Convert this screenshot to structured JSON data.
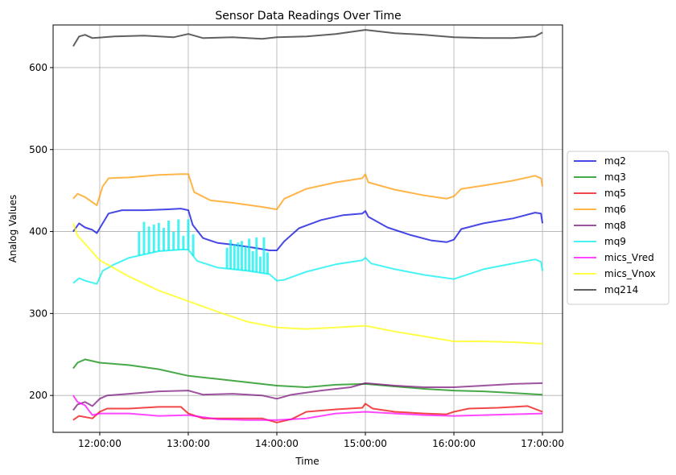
{
  "chart_data": {
    "type": "line",
    "title": "Sensor Data Readings Over Time",
    "xlabel": "Time",
    "ylabel": "Analog Values",
    "x_range": [
      "11:42:00",
      "17:00:00"
    ],
    "ylim": [
      155,
      652
    ],
    "grid": true,
    "legend_position": "right",
    "x_ticks": [
      "12:00:00",
      "13:00:00",
      "14:00:00",
      "15:00:00",
      "16:00:00",
      "17:00:00"
    ],
    "y_ticks": [
      200,
      300,
      400,
      500,
      600
    ],
    "series": [
      {
        "name": "mq2",
        "color": "#0000dd",
        "points": [
          [
            "11:42:00",
            400
          ],
          [
            "11:46:00",
            410
          ],
          [
            "11:50:00",
            405
          ],
          [
            "11:55:00",
            402
          ],
          [
            "11:58:00",
            398
          ],
          [
            "12:02:00",
            410
          ],
          [
            "12:06:00",
            422
          ],
          [
            "12:15:00",
            426
          ],
          [
            "12:30:00",
            426
          ],
          [
            "12:45:00",
            427
          ],
          [
            "12:55:00",
            428
          ],
          [
            "13:00:00",
            426
          ],
          [
            "13:03:00",
            408
          ],
          [
            "13:10:00",
            392
          ],
          [
            "13:20:00",
            386
          ],
          [
            "13:30:00",
            384
          ],
          [
            "13:45:00",
            380
          ],
          [
            "13:55:00",
            377
          ],
          [
            "14:00:00",
            377
          ],
          [
            "14:05:00",
            388
          ],
          [
            "14:15:00",
            404
          ],
          [
            "14:30:00",
            414
          ],
          [
            "14:45:00",
            420
          ],
          [
            "14:58:00",
            422
          ],
          [
            "15:00:00",
            425
          ],
          [
            "15:02:00",
            418
          ],
          [
            "15:15:00",
            405
          ],
          [
            "15:30:00",
            396
          ],
          [
            "15:45:00",
            389
          ],
          [
            "15:55:00",
            387
          ],
          [
            "16:00:00",
            390
          ],
          [
            "16:05:00",
            403
          ],
          [
            "16:20:00",
            410
          ],
          [
            "16:40:00",
            416
          ],
          [
            "16:55:00",
            423
          ],
          [
            "16:59:00",
            422
          ],
          [
            "17:00:00",
            410
          ]
        ]
      },
      {
        "name": "mq3",
        "color": "#008800",
        "points": [
          [
            "11:42:00",
            233
          ],
          [
            "11:45:00",
            240
          ],
          [
            "11:50:00",
            244
          ],
          [
            "12:00:00",
            240
          ],
          [
            "12:20:00",
            237
          ],
          [
            "12:40:00",
            232
          ],
          [
            "13:00:00",
            224
          ],
          [
            "13:20:00",
            220
          ],
          [
            "13:40:00",
            216
          ],
          [
            "14:00:00",
            212
          ],
          [
            "14:20:00",
            210
          ],
          [
            "14:40:00",
            213
          ],
          [
            "15:00:00",
            214
          ],
          [
            "15:20:00",
            211
          ],
          [
            "15:40:00",
            208
          ],
          [
            "16:00:00",
            206
          ],
          [
            "16:20:00",
            205
          ],
          [
            "16:40:00",
            203
          ],
          [
            "17:00:00",
            201
          ]
        ]
      },
      {
        "name": "mq5",
        "color": "#ee0000",
        "points": [
          [
            "11:42:00",
            170
          ],
          [
            "11:46:00",
            175
          ],
          [
            "11:55:00",
            172
          ],
          [
            "12:00:00",
            180
          ],
          [
            "12:05:00",
            184
          ],
          [
            "12:20:00",
            184
          ],
          [
            "12:40:00",
            186
          ],
          [
            "12:55:00",
            186
          ],
          [
            "13:00:00",
            178
          ],
          [
            "13:10:00",
            172
          ],
          [
            "13:30:00",
            172
          ],
          [
            "13:50:00",
            172
          ],
          [
            "14:00:00",
            167
          ],
          [
            "14:10:00",
            171
          ],
          [
            "14:20:00",
            180
          ],
          [
            "14:40:00",
            183
          ],
          [
            "14:58:00",
            185
          ],
          [
            "15:00:00",
            190
          ],
          [
            "15:05:00",
            184
          ],
          [
            "15:20:00",
            180
          ],
          [
            "15:40:00",
            178
          ],
          [
            "15:55:00",
            177
          ],
          [
            "16:00:00",
            180
          ],
          [
            "16:10:00",
            184
          ],
          [
            "16:30:00",
            185
          ],
          [
            "16:50:00",
            187
          ],
          [
            "17:00:00",
            180
          ]
        ]
      },
      {
        "name": "mq6",
        "color": "#ff9900",
        "points": [
          [
            "11:42:00",
            440
          ],
          [
            "11:45:00",
            446
          ],
          [
            "11:50:00",
            442
          ],
          [
            "11:58:00",
            432
          ],
          [
            "12:02:00",
            455
          ],
          [
            "12:06:00",
            465
          ],
          [
            "12:20:00",
            466
          ],
          [
            "12:40:00",
            469
          ],
          [
            "12:55:00",
            470
          ],
          [
            "13:00:00",
            470
          ],
          [
            "13:04:00",
            448
          ],
          [
            "13:15:00",
            438
          ],
          [
            "13:30:00",
            435
          ],
          [
            "13:50:00",
            430
          ],
          [
            "14:00:00",
            427
          ],
          [
            "14:05:00",
            440
          ],
          [
            "14:20:00",
            452
          ],
          [
            "14:40:00",
            460
          ],
          [
            "14:58:00",
            465
          ],
          [
            "15:00:00",
            470
          ],
          [
            "15:02:00",
            460
          ],
          [
            "15:20:00",
            451
          ],
          [
            "15:40:00",
            444
          ],
          [
            "15:55:00",
            440
          ],
          [
            "16:00:00",
            443
          ],
          [
            "16:05:00",
            452
          ],
          [
            "16:20:00",
            456
          ],
          [
            "16:40:00",
            462
          ],
          [
            "16:55:00",
            468
          ],
          [
            "16:59:00",
            465
          ],
          [
            "17:00:00",
            455
          ]
        ]
      },
      {
        "name": "mq8",
        "color": "#771177",
        "points": [
          [
            "11:42:00",
            182
          ],
          [
            "11:45:00",
            189
          ],
          [
            "11:50:00",
            192
          ],
          [
            "11:55:00",
            187
          ],
          [
            "12:00:00",
            196
          ],
          [
            "12:05:00",
            200
          ],
          [
            "12:20:00",
            202
          ],
          [
            "12:40:00",
            205
          ],
          [
            "13:00:00",
            206
          ],
          [
            "13:10:00",
            201
          ],
          [
            "13:30:00",
            202
          ],
          [
            "13:50:00",
            200
          ],
          [
            "14:00:00",
            196
          ],
          [
            "14:10:00",
            201
          ],
          [
            "14:30:00",
            206
          ],
          [
            "14:50:00",
            210
          ],
          [
            "15:00:00",
            215
          ],
          [
            "15:20:00",
            212
          ],
          [
            "15:40:00",
            210
          ],
          [
            "16:00:00",
            210
          ],
          [
            "16:20:00",
            212
          ],
          [
            "16:40:00",
            214
          ],
          [
            "17:00:00",
            215
          ]
        ]
      },
      {
        "name": "mq9",
        "color": "#00eeee",
        "points": [
          [
            "11:42:00",
            337
          ],
          [
            "11:46:00",
            343
          ],
          [
            "11:50:00",
            340
          ],
          [
            "11:58:00",
            336
          ],
          [
            "12:02:00",
            352
          ],
          [
            "12:10:00",
            360
          ],
          [
            "12:20:00",
            368
          ],
          [
            "12:40:00",
            376
          ],
          [
            "12:55:00",
            378
          ],
          [
            "13:00:00",
            378
          ],
          [
            "13:06:00",
            364
          ],
          [
            "13:20:00",
            356
          ],
          [
            "13:40:00",
            352
          ],
          [
            "13:55:00",
            348
          ],
          [
            "14:00:00",
            340
          ],
          [
            "14:05:00",
            341
          ],
          [
            "14:20:00",
            351
          ],
          [
            "14:40:00",
            360
          ],
          [
            "14:58:00",
            365
          ],
          [
            "15:00:00",
            368
          ],
          [
            "15:04:00",
            361
          ],
          [
            "15:20:00",
            354
          ],
          [
            "15:40:00",
            347
          ],
          [
            "16:00:00",
            342
          ],
          [
            "16:05:00",
            345
          ],
          [
            "16:20:00",
            354
          ],
          [
            "16:40:00",
            361
          ],
          [
            "16:55:00",
            366
          ],
          [
            "16:59:00",
            363
          ],
          [
            "17:00:00",
            352
          ]
        ]
      },
      {
        "name": "mics_Vred",
        "color": "#ff00ff",
        "points": [
          [
            "11:42:00",
            200
          ],
          [
            "11:45:00",
            192
          ],
          [
            "11:50:00",
            188
          ],
          [
            "11:55:00",
            176
          ],
          [
            "12:00:00",
            178
          ],
          [
            "12:20:00",
            178
          ],
          [
            "12:40:00",
            175
          ],
          [
            "13:00:00",
            176
          ],
          [
            "13:20:00",
            171
          ],
          [
            "13:40:00",
            170
          ],
          [
            "14:00:00",
            170
          ],
          [
            "14:20:00",
            172
          ],
          [
            "14:40:00",
            178
          ],
          [
            "15:00:00",
            180
          ],
          [
            "15:20:00",
            178
          ],
          [
            "15:40:00",
            176
          ],
          [
            "16:00:00",
            175
          ],
          [
            "16:20:00",
            176
          ],
          [
            "16:40:00",
            177
          ],
          [
            "17:00:00",
            178
          ]
        ]
      },
      {
        "name": "mics_Vnox",
        "color": "#ffff00",
        "points": [
          [
            "11:42:00",
            410
          ],
          [
            "11:45:00",
            395
          ],
          [
            "11:50:00",
            385
          ],
          [
            "12:00:00",
            365
          ],
          [
            "12:20:00",
            345
          ],
          [
            "12:40:00",
            328
          ],
          [
            "13:00:00",
            315
          ],
          [
            "13:20:00",
            302
          ],
          [
            "13:40:00",
            290
          ],
          [
            "14:00:00",
            283
          ],
          [
            "14:20:00",
            281
          ],
          [
            "14:40:00",
            283
          ],
          [
            "15:00:00",
            285
          ],
          [
            "15:20:00",
            278
          ],
          [
            "15:40:00",
            272
          ],
          [
            "16:00:00",
            266
          ],
          [
            "16:20:00",
            266
          ],
          [
            "16:40:00",
            265
          ],
          [
            "17:00:00",
            263
          ]
        ]
      },
      {
        "name": "mq214",
        "color": "#222222",
        "points": [
          [
            "11:42:00",
            626
          ],
          [
            "11:46:00",
            638
          ],
          [
            "11:50:00",
            640
          ],
          [
            "11:55:00",
            636
          ],
          [
            "12:10:00",
            638
          ],
          [
            "12:30:00",
            639
          ],
          [
            "12:50:00",
            637
          ],
          [
            "13:00:00",
            641
          ],
          [
            "13:10:00",
            636
          ],
          [
            "13:30:00",
            637
          ],
          [
            "13:50:00",
            635
          ],
          [
            "14:00:00",
            637
          ],
          [
            "14:20:00",
            638
          ],
          [
            "14:40:00",
            641
          ],
          [
            "15:00:00",
            646
          ],
          [
            "15:20:00",
            642
          ],
          [
            "15:40:00",
            640
          ],
          [
            "16:00:00",
            637
          ],
          [
            "16:20:00",
            636
          ],
          [
            "16:40:00",
            636
          ],
          [
            "16:55:00",
            638
          ],
          [
            "17:00:00",
            643
          ]
        ]
      }
    ],
    "annotations": [
      {
        "series": "mq9",
        "type": "spikes",
        "from": "12:25:00",
        "to": "13:05:00",
        "top": 415
      },
      {
        "series": "mq9",
        "type": "spikes",
        "from": "13:25:00",
        "to": "13:55:00",
        "top": 393
      }
    ]
  }
}
